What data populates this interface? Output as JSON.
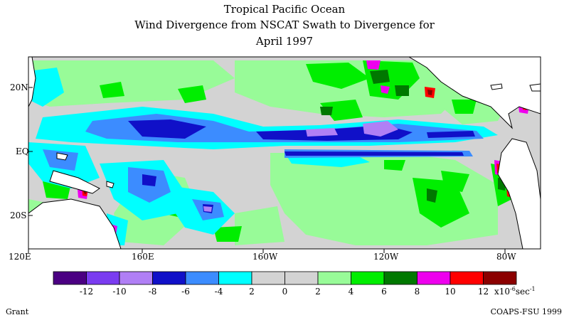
{
  "title": {
    "line1": "Tropical Pacific Ocean",
    "line2": "Wind Divergence from NSCAT Swath to Divergence for",
    "line3": "April 1997"
  },
  "axes": {
    "lat_ticks": [
      "20N",
      "EQ",
      "20S"
    ],
    "lon_ticks": [
      "120E",
      "160E",
      "160W",
      "120W",
      "80W"
    ]
  },
  "colorbar": {
    "bins": [
      {
        "color": "#4b0082"
      },
      {
        "color": "#7a3cf0"
      },
      {
        "color": "#b07ff5"
      },
      {
        "color": "#1010c8"
      },
      {
        "color": "#3c8cff"
      },
      {
        "color": "#00ffff"
      },
      {
        "color": "#d3d3d3"
      },
      {
        "color": "#d3d3d3"
      },
      {
        "color": "#98fb98"
      },
      {
        "color": "#00ee00"
      },
      {
        "color": "#007800"
      },
      {
        "color": "#ee00ee"
      },
      {
        "color": "#ff0000"
      },
      {
        "color": "#8b0000"
      }
    ],
    "tick_labels": [
      "-12",
      "-10",
      "-8",
      "-6",
      "-4",
      "2",
      "0",
      "2",
      "4",
      "6",
      "8",
      "10",
      "12"
    ],
    "unit": "x10",
    "unit_exp": "-6",
    "unit_tail": "sec",
    "unit_tail_exp": "-1"
  },
  "footer": {
    "left": "Grant",
    "right": "COAPS-FSU 1999"
  },
  "palette": {
    "background": "#d3d3d3",
    "land": "#ffffff",
    "coast": "#000000"
  }
}
